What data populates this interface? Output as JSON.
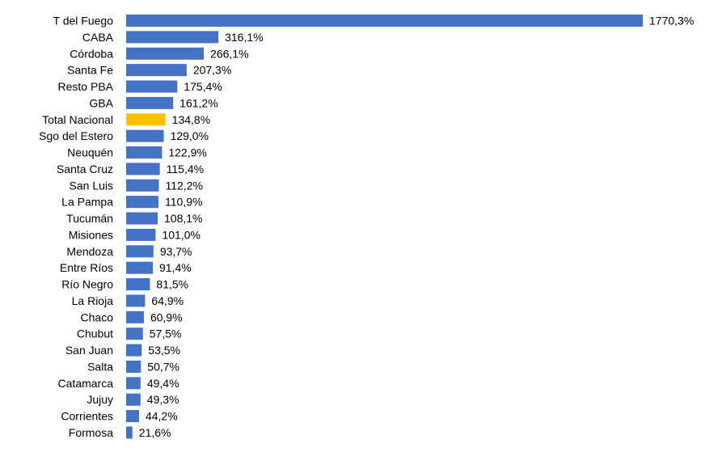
{
  "chart_data": {
    "type": "bar",
    "orientation": "horizontal",
    "categories": [
      "T del Fuego",
      "CABA",
      "Córdoba",
      "Santa Fe",
      "Resto PBA",
      "GBA",
      "Total Nacional",
      "Sgo del Estero",
      "Neuquén",
      "Santa Cruz",
      "San Luis",
      "La Pampa",
      "Tucumán",
      "Misiones",
      "Mendoza",
      "Entre Ríos",
      "Río Negro",
      "La Rioja",
      "Chaco",
      "Chubut",
      "San Juan",
      "Salta",
      "Catamarca",
      "Jujuy",
      "Corrientes",
      "Formosa"
    ],
    "values": [
      1770.3,
      316.1,
      266.1,
      207.3,
      175.4,
      161.2,
      134.8,
      129.0,
      122.9,
      115.4,
      112.2,
      110.9,
      108.1,
      101.0,
      93.7,
      91.4,
      81.5,
      64.9,
      60.9,
      57.5,
      53.5,
      50.7,
      49.4,
      49.3,
      44.2,
      21.6
    ],
    "value_labels": [
      "1770,3%",
      "316,1%",
      "266,1%",
      "207,3%",
      "175,4%",
      "161,2%",
      "134,8%",
      "129,0%",
      "122,9%",
      "115,4%",
      "112,2%",
      "110,9%",
      "108,1%",
      "101,0%",
      "93,7%",
      "91,4%",
      "81,5%",
      "64,9%",
      "60,9%",
      "57,5%",
      "53,5%",
      "50,7%",
      "49,4%",
      "49,3%",
      "44,2%",
      "21,6%"
    ],
    "highlight_category": "Total Nacional",
    "colors": {
      "bar": "#4472C4",
      "highlight": "#FFC000",
      "text": "#000000"
    },
    "xlim": [
      0,
      1770.3
    ],
    "grid": false,
    "legend": "none",
    "title": "",
    "xlabel": "",
    "ylabel": ""
  }
}
